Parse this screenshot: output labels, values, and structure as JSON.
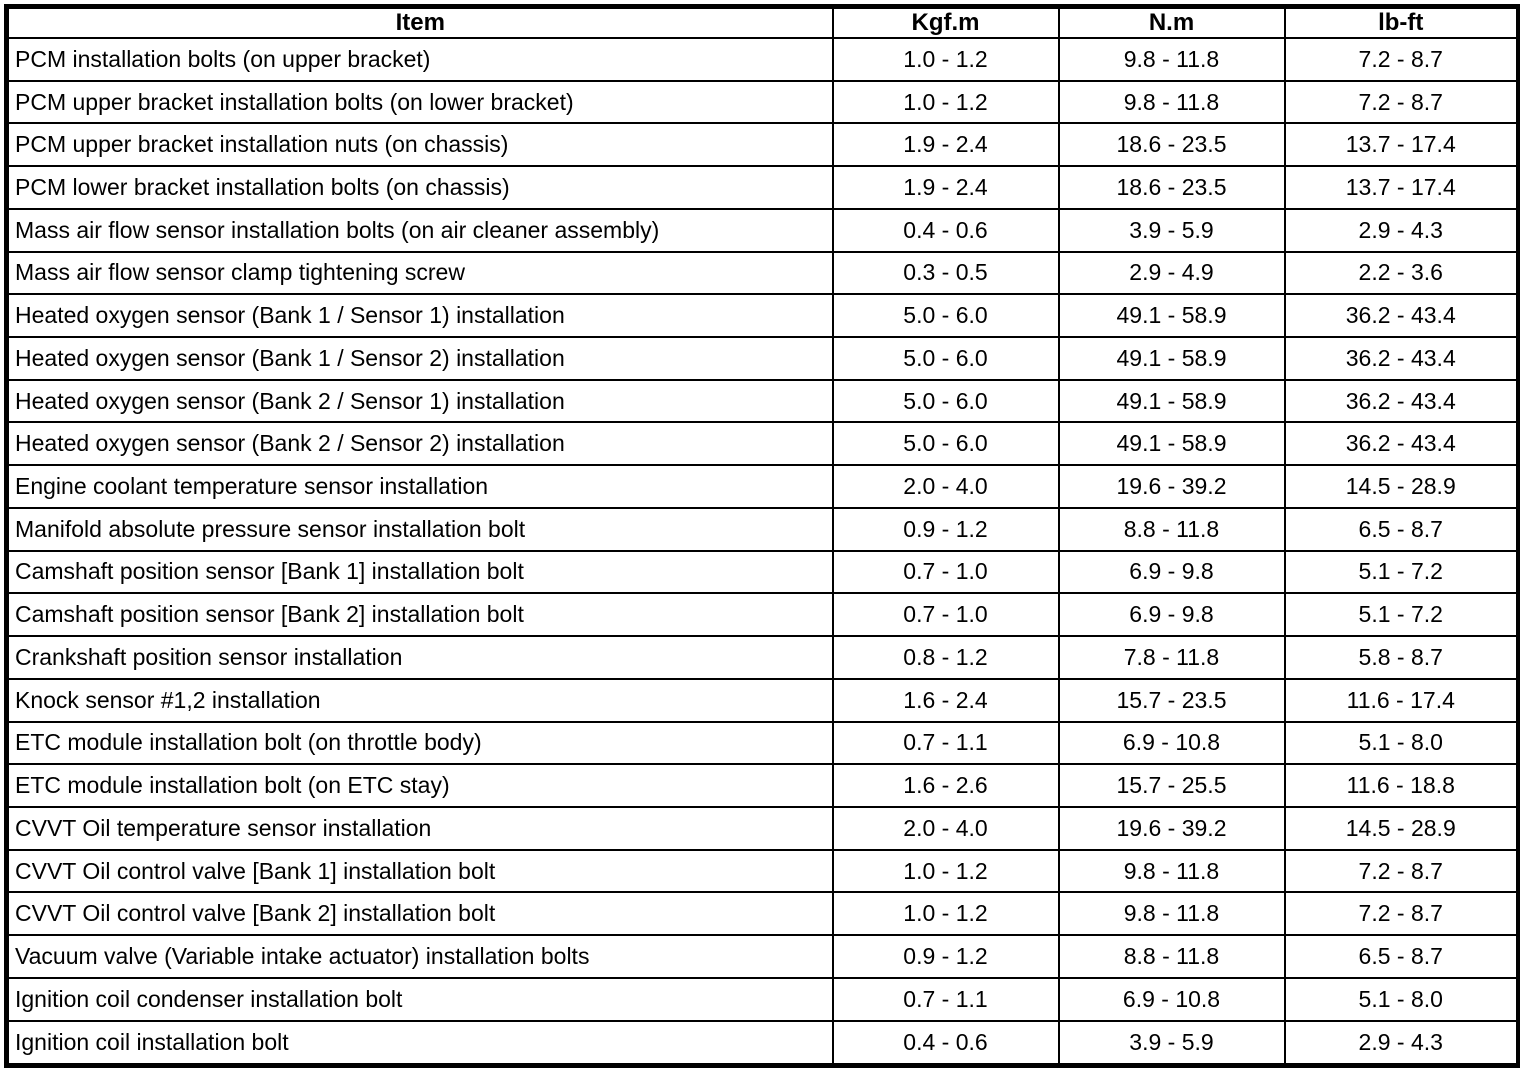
{
  "table": {
    "columns": [
      "Item",
      "Kgf.m",
      "N.m",
      "lb-ft"
    ],
    "rows": [
      {
        "item": "PCM installation bolts (on upper bracket)",
        "kgfm": "1.0 - 1.2",
        "nm": "9.8 - 11.8",
        "lbft": "7.2 - 8.7"
      },
      {
        "item": "PCM upper bracket installation bolts (on lower bracket)",
        "kgfm": "1.0 - 1.2",
        "nm": "9.8 - 11.8",
        "lbft": "7.2 - 8.7"
      },
      {
        "item": "PCM upper bracket installation nuts (on chassis)",
        "kgfm": "1.9 - 2.4",
        "nm": "18.6 - 23.5",
        "lbft": "13.7 - 17.4"
      },
      {
        "item": "PCM lower bracket installation bolts (on chassis)",
        "kgfm": "1.9 - 2.4",
        "nm": "18.6 - 23.5",
        "lbft": "13.7 - 17.4"
      },
      {
        "item": "Mass air flow sensor installation bolts (on air cleaner assembly)",
        "kgfm": "0.4 - 0.6",
        "nm": "3.9 - 5.9",
        "lbft": "2.9 - 4.3"
      },
      {
        "item": "Mass air flow sensor clamp tightening screw",
        "kgfm": "0.3 - 0.5",
        "nm": "2.9 - 4.9",
        "lbft": "2.2 - 3.6"
      },
      {
        "item": "Heated oxygen sensor (Bank 1 / Sensor 1) installation",
        "kgfm": "5.0 - 6.0",
        "nm": "49.1 - 58.9",
        "lbft": "36.2 - 43.4"
      },
      {
        "item": "Heated oxygen sensor (Bank 1 / Sensor 2) installation",
        "kgfm": "5.0 - 6.0",
        "nm": "49.1 - 58.9",
        "lbft": "36.2 - 43.4"
      },
      {
        "item": "Heated oxygen sensor (Bank 2 / Sensor 1) installation",
        "kgfm": "5.0 - 6.0",
        "nm": "49.1 - 58.9",
        "lbft": "36.2 - 43.4"
      },
      {
        "item": "Heated oxygen sensor (Bank 2 / Sensor 2) installation",
        "kgfm": "5.0 - 6.0",
        "nm": "49.1 - 58.9",
        "lbft": "36.2 - 43.4"
      },
      {
        "item": "Engine coolant temperature sensor installation",
        "kgfm": "2.0 - 4.0",
        "nm": "19.6 - 39.2",
        "lbft": "14.5 - 28.9"
      },
      {
        "item": "Manifold absolute pressure sensor installation bolt",
        "kgfm": "0.9 - 1.2",
        "nm": "8.8 - 11.8",
        "lbft": "6.5 - 8.7"
      },
      {
        "item": "Camshaft position sensor [Bank 1] installation bolt",
        "kgfm": "0.7 - 1.0",
        "nm": "6.9 - 9.8",
        "lbft": "5.1 - 7.2"
      },
      {
        "item": "Camshaft position sensor [Bank 2] installation bolt",
        "kgfm": "0.7 - 1.0",
        "nm": "6.9 - 9.8",
        "lbft": "5.1 - 7.2"
      },
      {
        "item": "Crankshaft position sensor installation",
        "kgfm": "0.8 - 1.2",
        "nm": "7.8 - 11.8",
        "lbft": "5.8 - 8.7"
      },
      {
        "item": "Knock sensor #1,2 installation",
        "kgfm": "1.6 - 2.4",
        "nm": "15.7 - 23.5",
        "lbft": "11.6 - 17.4"
      },
      {
        "item": "ETC module installation bolt (on throttle body)",
        "kgfm": "0.7 - 1.1",
        "nm": "6.9 - 10.8",
        "lbft": "5.1 - 8.0"
      },
      {
        "item": "ETC module installation bolt (on ETC stay)",
        "kgfm": "1.6 - 2.6",
        "nm": "15.7 - 25.5",
        "lbft": "11.6 - 18.8"
      },
      {
        "item": "CVVT Oil temperature sensor installation",
        "kgfm": "2.0 - 4.0",
        "nm": "19.6 - 39.2",
        "lbft": "14.5 - 28.9"
      },
      {
        "item": "CVVT Oil control valve [Bank 1] installation bolt",
        "kgfm": "1.0 - 1.2",
        "nm": "9.8 - 11.8",
        "lbft": "7.2 - 8.7"
      },
      {
        "item": "CVVT Oil control valve [Bank 2] installation bolt",
        "kgfm": "1.0 - 1.2",
        "nm": "9.8 - 11.8",
        "lbft": "7.2 - 8.7"
      },
      {
        "item": "Vacuum valve (Variable intake actuator) installation bolts",
        "kgfm": "0.9 - 1.2",
        "nm": "8.8 - 11.8",
        "lbft": "6.5 - 8.7"
      },
      {
        "item": "Ignition coil condenser installation bolt",
        "kgfm": "0.7 - 1.1",
        "nm": "6.9 - 10.8",
        "lbft": "5.1 - 8.0"
      },
      {
        "item": "Ignition coil installation bolt",
        "kgfm": "0.4 - 0.6",
        "nm": "3.9 - 5.9",
        "lbft": "2.9 - 4.3"
      }
    ],
    "colors": {
      "border": "#000000",
      "text": "#000000",
      "background": "#ffffff"
    }
  }
}
